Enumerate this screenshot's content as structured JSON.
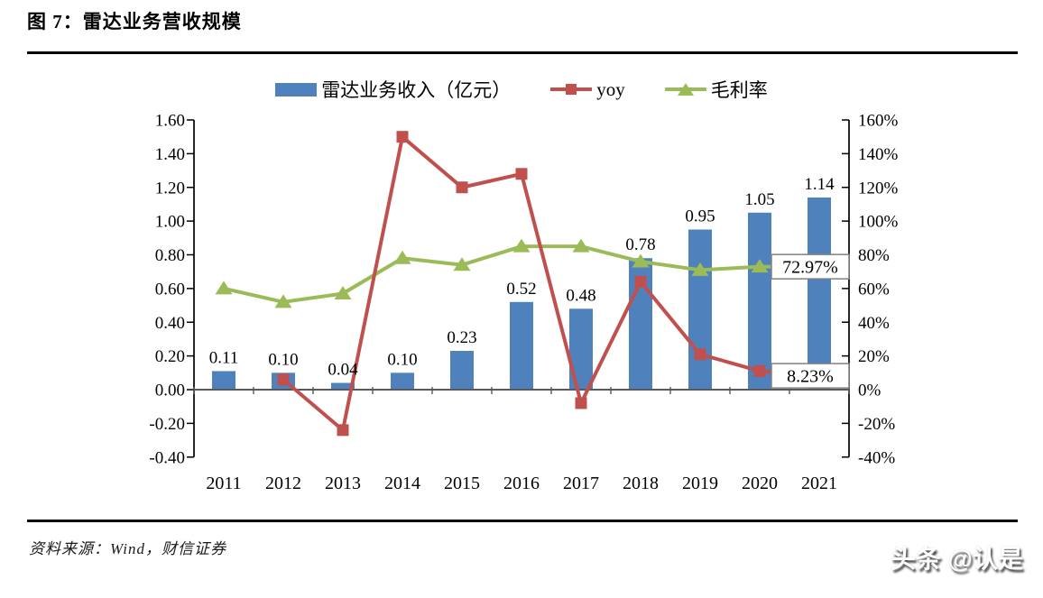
{
  "header": {
    "title": "图 7：雷达业务营收规模"
  },
  "footer": {
    "source": "资料来源：Wind，财信证券",
    "watermark": "头条 @认是"
  },
  "chart_data": {
    "type": "bar",
    "title": "雷达业务营收规模",
    "legend_position": "top",
    "grid": false,
    "categories": [
      "2011",
      "2012",
      "2013",
      "2014",
      "2015",
      "2016",
      "2017",
      "2018",
      "2019",
      "2020",
      "2021"
    ],
    "series": [
      {
        "name": "雷达业务收入（亿元）",
        "kind": "bar",
        "axis": "left",
        "color": "#4F81BD",
        "values": [
          0.11,
          0.1,
          0.04,
          0.1,
          0.23,
          0.52,
          0.48,
          0.78,
          0.95,
          1.05,
          1.14
        ],
        "labels": [
          "0.11",
          "0.10",
          "0.04",
          "0.10",
          "0.23",
          "0.52",
          "0.48",
          "0.78",
          "0.95",
          "1.05",
          "1.14"
        ]
      },
      {
        "name": "yoy",
        "kind": "line",
        "marker": "square",
        "axis": "right",
        "color": "#C0504D",
        "values": [
          null,
          6,
          -24,
          150,
          120,
          128,
          -8,
          64,
          21,
          11,
          8.23
        ],
        "end_label": "8.23%"
      },
      {
        "name": "毛利率",
        "kind": "line",
        "marker": "triangle",
        "axis": "right",
        "color": "#9BBB59",
        "values": [
          60,
          52,
          57,
          78,
          74,
          85,
          85,
          76,
          71,
          73,
          72.97
        ],
        "end_label": "72.97%"
      }
    ],
    "left_axis": {
      "min": -0.4,
      "max": 1.6,
      "step": 0.2,
      "ticks": [
        "1.60",
        "1.40",
        "1.20",
        "1.00",
        "0.80",
        "0.60",
        "0.40",
        "0.20",
        "0.00",
        "-0.20",
        "-0.40"
      ]
    },
    "right_axis": {
      "min": -40,
      "max": 160,
      "step": 20,
      "ticks": [
        "160%",
        "140%",
        "120%",
        "100%",
        "80%",
        "60%",
        "40%",
        "20%",
        "0%",
        "-20%",
        "-40%"
      ]
    },
    "colors": {
      "axis_line": "#000000",
      "category_axis_line": "#595959",
      "annotation_border": "#808080",
      "annotation_fill": "#ffffff"
    }
  }
}
